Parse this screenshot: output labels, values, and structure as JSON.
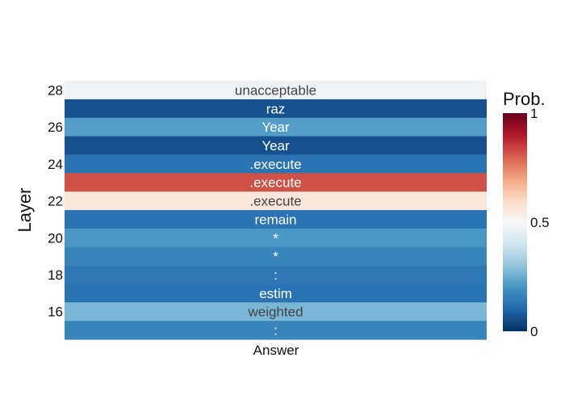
{
  "chart_data": {
    "type": "heatmap",
    "title": "",
    "xlabel": "",
    "ylabel": "Layer",
    "x_categories": [
      "Answer"
    ],
    "y_categories": [
      15,
      16,
      17,
      18,
      19,
      20,
      21,
      22,
      23,
      24,
      25,
      26,
      27,
      28
    ],
    "y_tick_labels": [
      "16",
      "18",
      "20",
      "22",
      "24",
      "26",
      "28"
    ],
    "cells": [
      {
        "layer": 28,
        "token": "unacceptable",
        "prob": 0.48
      },
      {
        "layer": 27,
        "token": "raz",
        "prob": 0.06
      },
      {
        "layer": 26,
        "token": "Year",
        "prob": 0.22
      },
      {
        "layer": 25,
        "token": "Year",
        "prob": 0.06
      },
      {
        "layer": 24,
        "token": ".execute",
        "prob": 0.13
      },
      {
        "layer": 23,
        "token": ".execute",
        "prob": 0.82
      },
      {
        "layer": 22,
        "token": ".execute",
        "prob": 0.56
      },
      {
        "layer": 21,
        "token": "remain",
        "prob": 0.13
      },
      {
        "layer": 20,
        "token": "*",
        "prob": 0.21
      },
      {
        "layer": 19,
        "token": "*",
        "prob": 0.17
      },
      {
        "layer": 18,
        "token": ":",
        "prob": 0.14
      },
      {
        "layer": 17,
        "token": "estim",
        "prob": 0.13
      },
      {
        "layer": 16,
        "token": "weighted",
        "prob": 0.27
      },
      {
        "layer": 15,
        "token": ":",
        "prob": 0.17
      }
    ],
    "colorscale": "RdBu (reversed)",
    "zmin": 0,
    "zmax": 1,
    "colorbar": {
      "title": "Prob.",
      "ticks": [
        "0",
        "0.5",
        "1"
      ],
      "tick_values": [
        0,
        0.5,
        1
      ]
    },
    "grid": false
  }
}
